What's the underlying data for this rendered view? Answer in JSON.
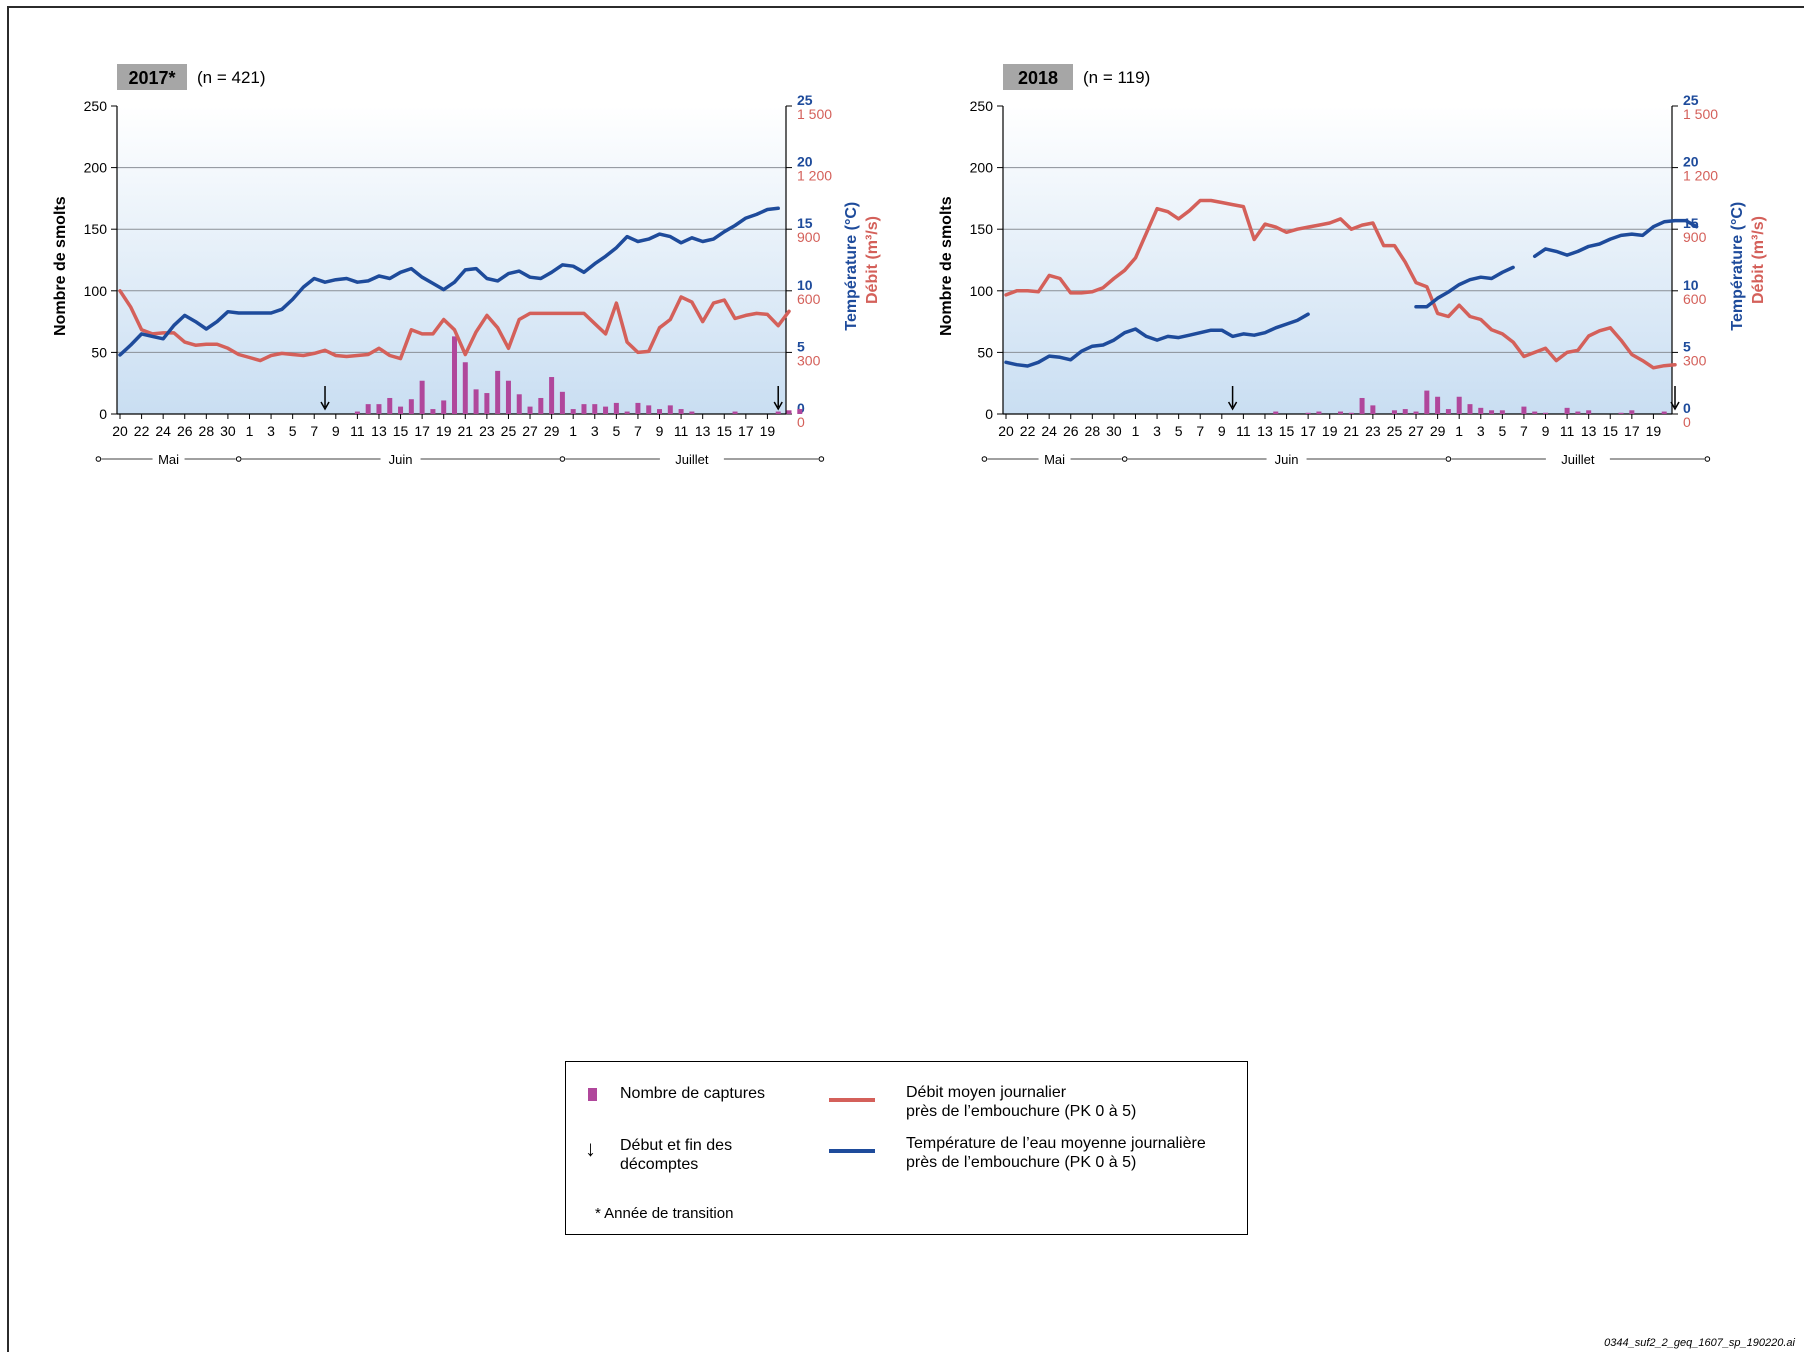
{
  "colors": {
    "bar": "#b0479b",
    "flow": "#d4605a",
    "temperature": "#1e4b9b",
    "panel_top": "#ffffff",
    "panel_bottom": "#c9def2",
    "badge": "#a6a6a6"
  },
  "x_tick_labels": [
    "20",
    "22",
    "24",
    "26",
    "28",
    "30",
    "1",
    "3",
    "5",
    "7",
    "9",
    "11",
    "13",
    "15",
    "17",
    "19",
    "21",
    "23",
    "25",
    "27",
    "29",
    "1",
    "3",
    "5",
    "7",
    "9",
    "11",
    "13",
    "15",
    "17",
    "19"
  ],
  "chart_data": [
    {
      "type": "bar+line",
      "panel_title": "2017*",
      "sample_size": "(n = 421)",
      "ylabel_left": "Nombre de smolts",
      "ylabel_right_temperature": "Température (°C)",
      "ylabel_right_flow": "Débit (m³/s)",
      "ylim_left": [
        0,
        250
      ],
      "left_ticks": [
        "0",
        "50",
        "100",
        "150",
        "200",
        "250"
      ],
      "ylim_temperature": [
        0,
        25
      ],
      "temperature_ticks": [
        "0",
        "5",
        "10",
        "15",
        "20",
        "25"
      ],
      "ylim_flow": [
        0,
        1500
      ],
      "flow_ticks": [
        "0",
        "300",
        "600",
        "900",
        "1 200",
        "1 500"
      ],
      "grid": true,
      "months": [
        "Mai",
        "Juin",
        "Juillet"
      ],
      "x_start": "May 20",
      "counting_start_day_index": 19,
      "counting_end_day_index": 61,
      "captures": [
        0,
        0,
        0,
        0,
        0,
        0,
        0,
        0,
        0,
        0,
        0,
        0,
        0,
        0,
        0,
        0,
        0,
        0,
        0,
        0,
        0,
        0,
        2,
        8,
        8,
        13,
        6,
        12,
        27,
        4,
        11,
        63,
        42,
        20,
        17,
        35,
        27,
        16,
        6,
        13,
        30,
        18,
        4,
        8,
        8,
        6,
        9,
        2,
        9,
        7,
        4,
        7,
        4,
        2,
        0,
        0,
        0,
        2,
        0,
        0,
        0,
        2,
        3,
        4
      ],
      "temperature": [
        4.8,
        5.6,
        6.5,
        6.3,
        6.1,
        7.2,
        8.0,
        7.5,
        6.9,
        7.5,
        8.3,
        8.2,
        8.2,
        8.2,
        8.2,
        8.5,
        9.3,
        10.3,
        11.0,
        10.7,
        10.9,
        11.0,
        10.7,
        10.8,
        11.2,
        11.0,
        11.5,
        11.8,
        11.1,
        10.6,
        10.1,
        10.7,
        11.7,
        11.8,
        11.0,
        10.8,
        11.4,
        11.6,
        11.1,
        11.0,
        11.5,
        12.1,
        12.0,
        11.5,
        12.2,
        12.8,
        13.5,
        14.4,
        14.0,
        14.2,
        14.6,
        14.4,
        13.9,
        14.3,
        14.0,
        14.2,
        14.8,
        15.3,
        15.9,
        16.2,
        16.6,
        16.7
      ],
      "flow": [
        600,
        520,
        410,
        390,
        395,
        395,
        350,
        335,
        340,
        340,
        320,
        290,
        275,
        260,
        285,
        295,
        290,
        285,
        295,
        310,
        285,
        280,
        285,
        290,
        320,
        285,
        270,
        410,
        390,
        390,
        460,
        410,
        290,
        400,
        480,
        420,
        320,
        460,
        490,
        490,
        490,
        490,
        490,
        490,
        440,
        390,
        540,
        350,
        300,
        305,
        420,
        460,
        570,
        545,
        450,
        540,
        555,
        465,
        480,
        490,
        485,
        430,
        500
      ]
    },
    {
      "type": "bar+line",
      "panel_title": "2018",
      "sample_size": "(n = 119)",
      "ylabel_left": "Nombre de smolts",
      "ylabel_right_temperature": "Température (°C)",
      "ylabel_right_flow": "Débit (m³/s)",
      "ylim_left": [
        0,
        250
      ],
      "left_ticks": [
        "0",
        "50",
        "100",
        "150",
        "200",
        "250"
      ],
      "ylim_temperature": [
        0,
        25
      ],
      "temperature_ticks": [
        "0",
        "5",
        "10",
        "15",
        "20",
        "25"
      ],
      "ylim_flow": [
        0,
        1500
      ],
      "flow_ticks": [
        "0",
        "300",
        "600",
        "900",
        "1 200",
        "1 500"
      ],
      "grid": true,
      "months": [
        "Mai",
        "Juin",
        "Juillet"
      ],
      "x_start": "May 20",
      "counting_start_day_index": 21,
      "counting_end_day_index": 62,
      "captures": [
        0,
        0,
        0,
        0,
        0,
        0,
        0,
        0,
        0,
        0,
        0,
        0,
        0,
        0,
        0,
        0,
        0,
        0,
        0,
        0,
        0,
        0,
        0,
        0,
        0,
        2,
        0,
        0,
        1,
        2,
        0,
        2,
        1,
        13,
        7,
        0,
        3,
        4,
        2,
        19,
        14,
        4,
        14,
        8,
        5,
        3,
        3,
        0,
        6,
        2,
        1,
        0,
        5,
        2,
        3,
        0,
        0,
        1,
        3,
        0,
        0,
        2
      ],
      "temperature": [
        4.2,
        4.0,
        3.9,
        4.2,
        4.7,
        4.6,
        4.4,
        5.1,
        5.5,
        5.6,
        6.0,
        6.6,
        6.9,
        6.3,
        6.0,
        6.3,
        6.2,
        6.4,
        6.6,
        6.8,
        6.8,
        6.3,
        6.5,
        6.4,
        6.6,
        7.0,
        7.3,
        7.6,
        8.1,
        null,
        null,
        null,
        null,
        null,
        null,
        null,
        null,
        null,
        8.7,
        8.7,
        9.4,
        9.9,
        10.5,
        10.9,
        11.1,
        11.0,
        11.5,
        11.9,
        null,
        12.8,
        13.4,
        13.2,
        12.9,
        13.2,
        13.6,
        13.8,
        14.2,
        14.5,
        14.6,
        14.5,
        15.2,
        15.6,
        15.7,
        15.7,
        15.2
      ],
      "flow": [
        580,
        600,
        600,
        595,
        675,
        660,
        590,
        590,
        595,
        615,
        660,
        700,
        760,
        880,
        1000,
        985,
        950,
        990,
        1040,
        1040,
        1030,
        1020,
        1010,
        850,
        925,
        910,
        885,
        900,
        910,
        920,
        930,
        950,
        900,
        920,
        930,
        820,
        820,
        740,
        640,
        620,
        490,
        475,
        530,
        475,
        460,
        410,
        390,
        350,
        280,
        300,
        320,
        260,
        300,
        310,
        380,
        405,
        420,
        360,
        290,
        260,
        225,
        235,
        240
      ]
    }
  ],
  "legend": {
    "captures_label": "Nombre de captures",
    "counting_label": "Début et fin des\ndécomptes",
    "flow_label": "Débit moyen journalier\nprès de l’embouchure (PK 0 à 5)",
    "temperature_label": "Température de l’eau moyenne journalière\nprès de l’embouchure (PK 0 à 5)",
    "transition_note": "* Année de transition"
  },
  "footer_id": "0344_suf2_2_geq_1607_sp_190220.ai"
}
